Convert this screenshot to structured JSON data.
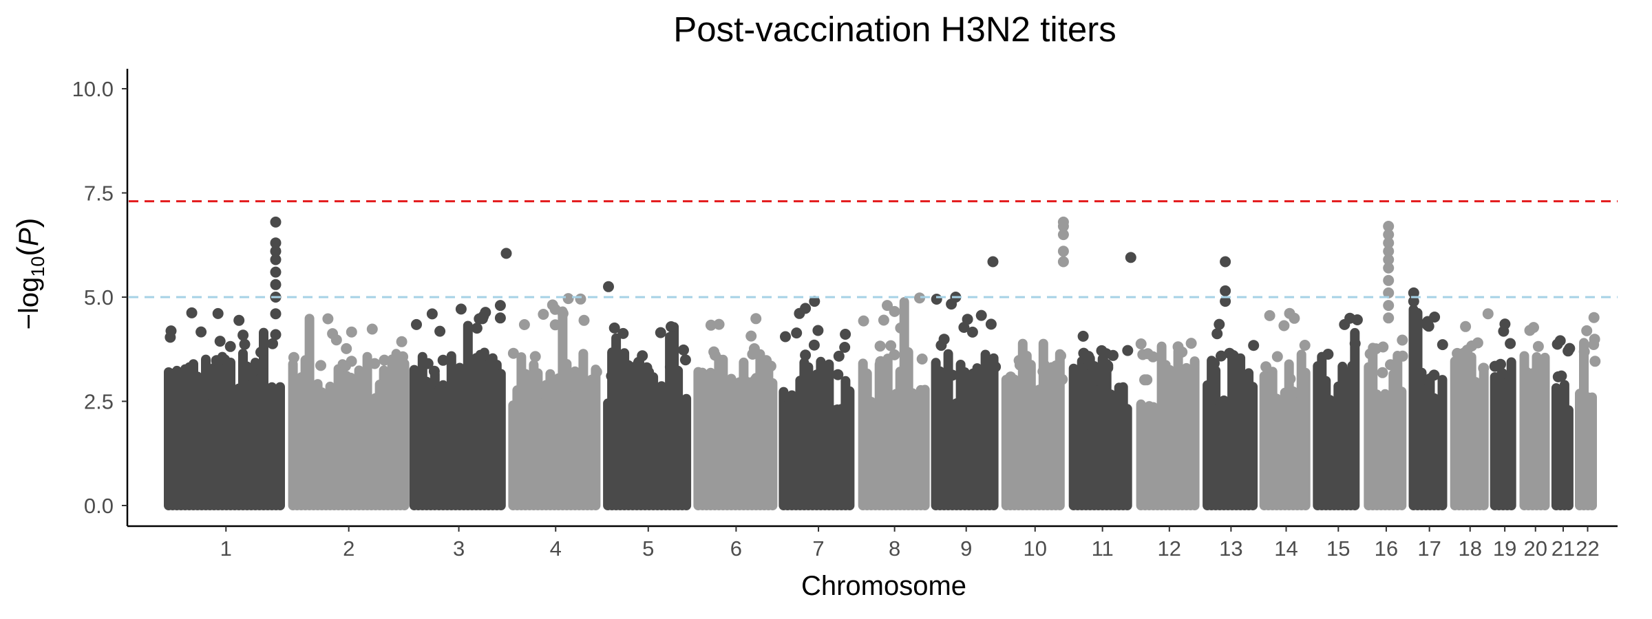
{
  "chart_data": {
    "type": "scatter",
    "subtype": "manhattan",
    "title": "Post-vaccination H3N2 titers",
    "xlabel": "Chromosome",
    "ylabel_main": "−log",
    "ylabel_sub": "10",
    "ylabel_var": "P",
    "ylim": [
      0,
      10.5
    ],
    "yticks": [
      0.0,
      2.5,
      5.0,
      7.5,
      10.0
    ],
    "ytick_labels": [
      "0.0",
      "2.5",
      "5.0",
      "7.5",
      "10.0"
    ],
    "grid": false,
    "legend": "none",
    "colors": {
      "dark": "#4a4a4a",
      "light": "#9a9a9a"
    },
    "thresholds": [
      {
        "name": "genome-wide significance",
        "value": 7.3,
        "color": "#e31a1c",
        "dash": "dashed"
      },
      {
        "name": "suggestive",
        "value": 5.0,
        "color": "#a6d2e6",
        "dash": "dashed"
      }
    ],
    "chromosomes": [
      {
        "label": "1",
        "length": 249,
        "max": 4.7
      },
      {
        "label": "2",
        "length": 243,
        "max": 4.6
      },
      {
        "label": "3",
        "length": 198,
        "max": 4.8
      },
      {
        "label": "4",
        "length": 190,
        "max": 5.0
      },
      {
        "label": "5",
        "length": 181,
        "max": 4.4
      },
      {
        "label": "6",
        "length": 171,
        "max": 4.6
      },
      {
        "label": "7",
        "length": 159,
        "max": 4.9
      },
      {
        "label": "8",
        "length": 146,
        "max": 5.0
      },
      {
        "label": "9",
        "length": 141,
        "max": 5.0
      },
      {
        "label": "10",
        "length": 135,
        "max": 4.0
      },
      {
        "label": "11",
        "length": 135,
        "max": 4.2
      },
      {
        "label": "12",
        "length": 133,
        "max": 4.2
      },
      {
        "label": "13",
        "length": 114,
        "max": 4.5
      },
      {
        "label": "14",
        "length": 107,
        "max": 5.0
      },
      {
        "label": "15",
        "length": 102,
        "max": 4.5
      },
      {
        "label": "16",
        "length": 90,
        "max": 4.0
      },
      {
        "label": "17",
        "length": 83,
        "max": 5.1
      },
      {
        "label": "18",
        "length": 80,
        "max": 4.4
      },
      {
        "label": "19",
        "length": 59,
        "max": 4.5
      },
      {
        "label": "20",
        "length": 64,
        "max": 4.8
      },
      {
        "label": "21",
        "length": 47,
        "max": 4.3
      },
      {
        "label": "22",
        "length": 51,
        "max": 4.6
      }
    ],
    "peaks": [
      {
        "chromosome": "1",
        "position": 0.9,
        "points": [
          4.1,
          4.6,
          5.0,
          5.3,
          5.6,
          5.9,
          6.1,
          6.3,
          6.8
        ]
      },
      {
        "chromosome": "3",
        "position": 0.92,
        "points": [
          4.5,
          4.8
        ]
      },
      {
        "chromosome": "3",
        "position": 0.98,
        "points": [
          6.05
        ]
      },
      {
        "chromosome": "5",
        "position": 0.06,
        "points": [
          5.25
        ]
      },
      {
        "chromosome": "7",
        "position": 0.45,
        "points": [
          4.9
        ]
      },
      {
        "chromosome": "8",
        "position": 0.4,
        "points": [
          4.8
        ]
      },
      {
        "chromosome": "9",
        "position": 0.08,
        "points": [
          4.95
        ]
      },
      {
        "chromosome": "9",
        "position": 0.35,
        "points": [
          5.0
        ]
      },
      {
        "chromosome": "9",
        "position": 0.88,
        "points": [
          5.85
        ]
      },
      {
        "chromosome": "10",
        "position": 0.92,
        "points": [
          5.85,
          6.1,
          6.5,
          6.7,
          6.8
        ]
      },
      {
        "chromosome": "11",
        "position": 0.92,
        "points": [
          5.95
        ]
      },
      {
        "chromosome": "13",
        "position": 0.4,
        "points": [
          4.9,
          5.15,
          5.85
        ]
      },
      {
        "chromosome": "16",
        "position": 0.55,
        "points": [
          4.5,
          4.8,
          5.1,
          5.4,
          5.7,
          5.9,
          6.1,
          6.3,
          6.5,
          6.7
        ]
      },
      {
        "chromosome": "17",
        "position": 0.12,
        "points": [
          4.9,
          5.1
        ]
      },
      {
        "chromosome": "18",
        "position": 0.95,
        "points": [
          4.6
        ]
      }
    ]
  }
}
